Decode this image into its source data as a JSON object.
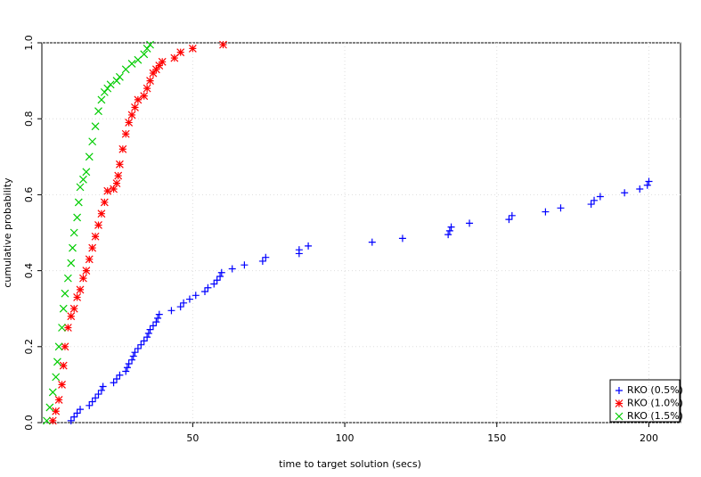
{
  "chart_data": {
    "type": "scatter",
    "x_label": "time to target solution (secs)",
    "y_label": "cumulative probability",
    "xlim": [
      0.4,
      210.4
    ],
    "ylim": [
      0,
      1
    ],
    "xticks": [
      50,
      100,
      150,
      200
    ],
    "yticks": [
      {
        "value": 0,
        "label": "0.0"
      },
      {
        "value": 0.2,
        "label": "0.2"
      },
      {
        "value": 0.4,
        "label": "0.4"
      },
      {
        "value": 0.6,
        "label": "0.6"
      },
      {
        "value": 0.8,
        "label": "0.8"
      },
      {
        "value": 1,
        "label": "1.0"
      }
    ],
    "grid": true,
    "legend": "bottom-right",
    "series": [
      {
        "name": "RKO (0.5%)",
        "color": "#0000ff",
        "marker": "plus",
        "x": [
          10,
          11,
          12,
          13,
          16,
          17,
          18,
          19,
          20,
          20.5,
          24,
          25,
          26,
          28,
          28.5,
          29,
          30,
          30.5,
          31,
          32,
          33,
          34,
          35,
          35.5,
          36,
          37,
          38,
          38.5,
          39,
          43,
          46,
          47,
          49,
          51,
          54,
          55,
          57,
          58,
          59,
          59.5,
          63,
          67,
          73,
          74,
          85,
          85,
          88,
          109,
          119,
          134,
          134.5,
          135,
          141,
          154,
          155,
          166,
          171,
          181,
          182,
          184,
          192,
          197,
          199.5,
          200
        ],
        "values": [
          0.005,
          0.015,
          0.025,
          0.035,
          0.045,
          0.055,
          0.065,
          0.075,
          0.085,
          0.095,
          0.105,
          0.115,
          0.125,
          0.135,
          0.145,
          0.155,
          0.165,
          0.175,
          0.185,
          0.195,
          0.205,
          0.215,
          0.225,
          0.235,
          0.245,
          0.255,
          0.265,
          0.275,
          0.285,
          0.295,
          0.305,
          0.315,
          0.325,
          0.335,
          0.345,
          0.355,
          0.365,
          0.375,
          0.385,
          0.395,
          0.405,
          0.415,
          0.425,
          0.435,
          0.445,
          0.455,
          0.465,
          0.475,
          0.485,
          0.495,
          0.505,
          0.515,
          0.525,
          0.535,
          0.545,
          0.555,
          0.565,
          0.575,
          0.585,
          0.595,
          0.605,
          0.615,
          0.625,
          0.635
        ]
      },
      {
        "name": "RKO (1.0%)",
        "color": "#ff0000",
        "marker": "star",
        "x": [
          4,
          5,
          6,
          7,
          7.5,
          8,
          9,
          10,
          11,
          12,
          13,
          14,
          15,
          16,
          17,
          18,
          19,
          20,
          21,
          22,
          24,
          25,
          25.5,
          26,
          27,
          28,
          29,
          30,
          31,
          32,
          34,
          35,
          36,
          37,
          38,
          39,
          40,
          44,
          46,
          50,
          60
        ],
        "values": [
          0.005,
          0.03,
          0.06,
          0.1,
          0.15,
          0.2,
          0.25,
          0.28,
          0.3,
          0.33,
          0.35,
          0.38,
          0.4,
          0.43,
          0.46,
          0.49,
          0.52,
          0.55,
          0.58,
          0.61,
          0.615,
          0.63,
          0.65,
          0.68,
          0.72,
          0.76,
          0.79,
          0.81,
          0.83,
          0.85,
          0.86,
          0.88,
          0.9,
          0.92,
          0.93,
          0.94,
          0.95,
          0.96,
          0.975,
          0.985,
          0.995
        ]
      },
      {
        "name": "RKO (1.5%)",
        "color": "#00cc00",
        "marker": "cross",
        "x": [
          2,
          3,
          4,
          5,
          5.5,
          6,
          7,
          7.5,
          8,
          9,
          10,
          10.5,
          11,
          12,
          12.5,
          13,
          14,
          15,
          16,
          17,
          18,
          19,
          20,
          21,
          22,
          23,
          25,
          26,
          28,
          30,
          32,
          34,
          35,
          36
        ],
        "values": [
          0.005,
          0.04,
          0.08,
          0.12,
          0.16,
          0.2,
          0.25,
          0.3,
          0.34,
          0.38,
          0.42,
          0.46,
          0.5,
          0.54,
          0.58,
          0.62,
          0.64,
          0.66,
          0.7,
          0.74,
          0.78,
          0.82,
          0.85,
          0.87,
          0.88,
          0.89,
          0.9,
          0.91,
          0.93,
          0.945,
          0.955,
          0.97,
          0.985,
          0.995
        ]
      }
    ]
  }
}
